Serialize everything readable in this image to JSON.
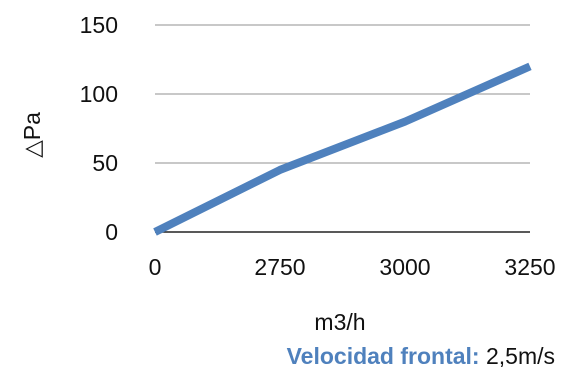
{
  "chart_data": {
    "type": "line",
    "categories": [
      "0",
      "2750",
      "3000",
      "3250"
    ],
    "series": [
      {
        "values": [
          0,
          45,
          80,
          120
        ],
        "color": "#4f81bd"
      }
    ],
    "xlabel": "m3/h",
    "ylabel": "△Pa",
    "ylim": [
      0,
      150
    ],
    "yticks": [
      "0",
      "50",
      "100",
      "150"
    ],
    "grid": true,
    "legend": "none"
  },
  "footer": {
    "label": "Velocidad frontal:",
    "value": "2,5m/s",
    "label_color": "#4f81bd"
  }
}
